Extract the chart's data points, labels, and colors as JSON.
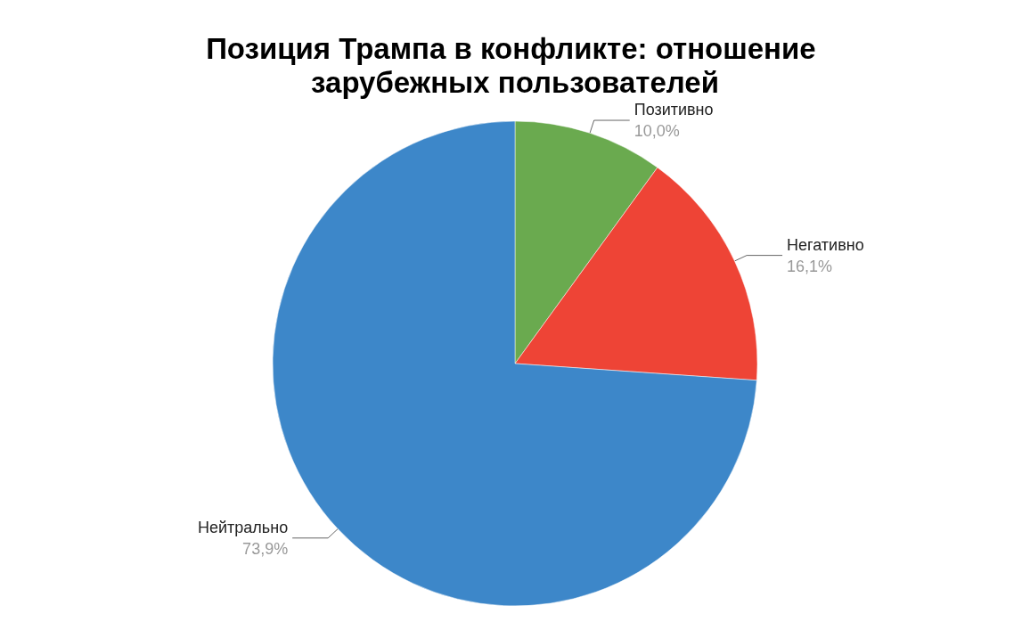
{
  "chart_data": {
    "type": "pie",
    "title": "Позиция Трампа в конфликте: отношение зарубежных пользователей",
    "categories": [
      "Позитивно",
      "Негативно",
      "Нейтрально"
    ],
    "values": [
      10.0,
      16.1,
      73.9
    ],
    "colors": [
      "#6aaa4f",
      "#ee4436",
      "#3d87c9"
    ],
    "value_labels": [
      "10,0%",
      "16,1%",
      "73,9%"
    ],
    "legend": false
  }
}
